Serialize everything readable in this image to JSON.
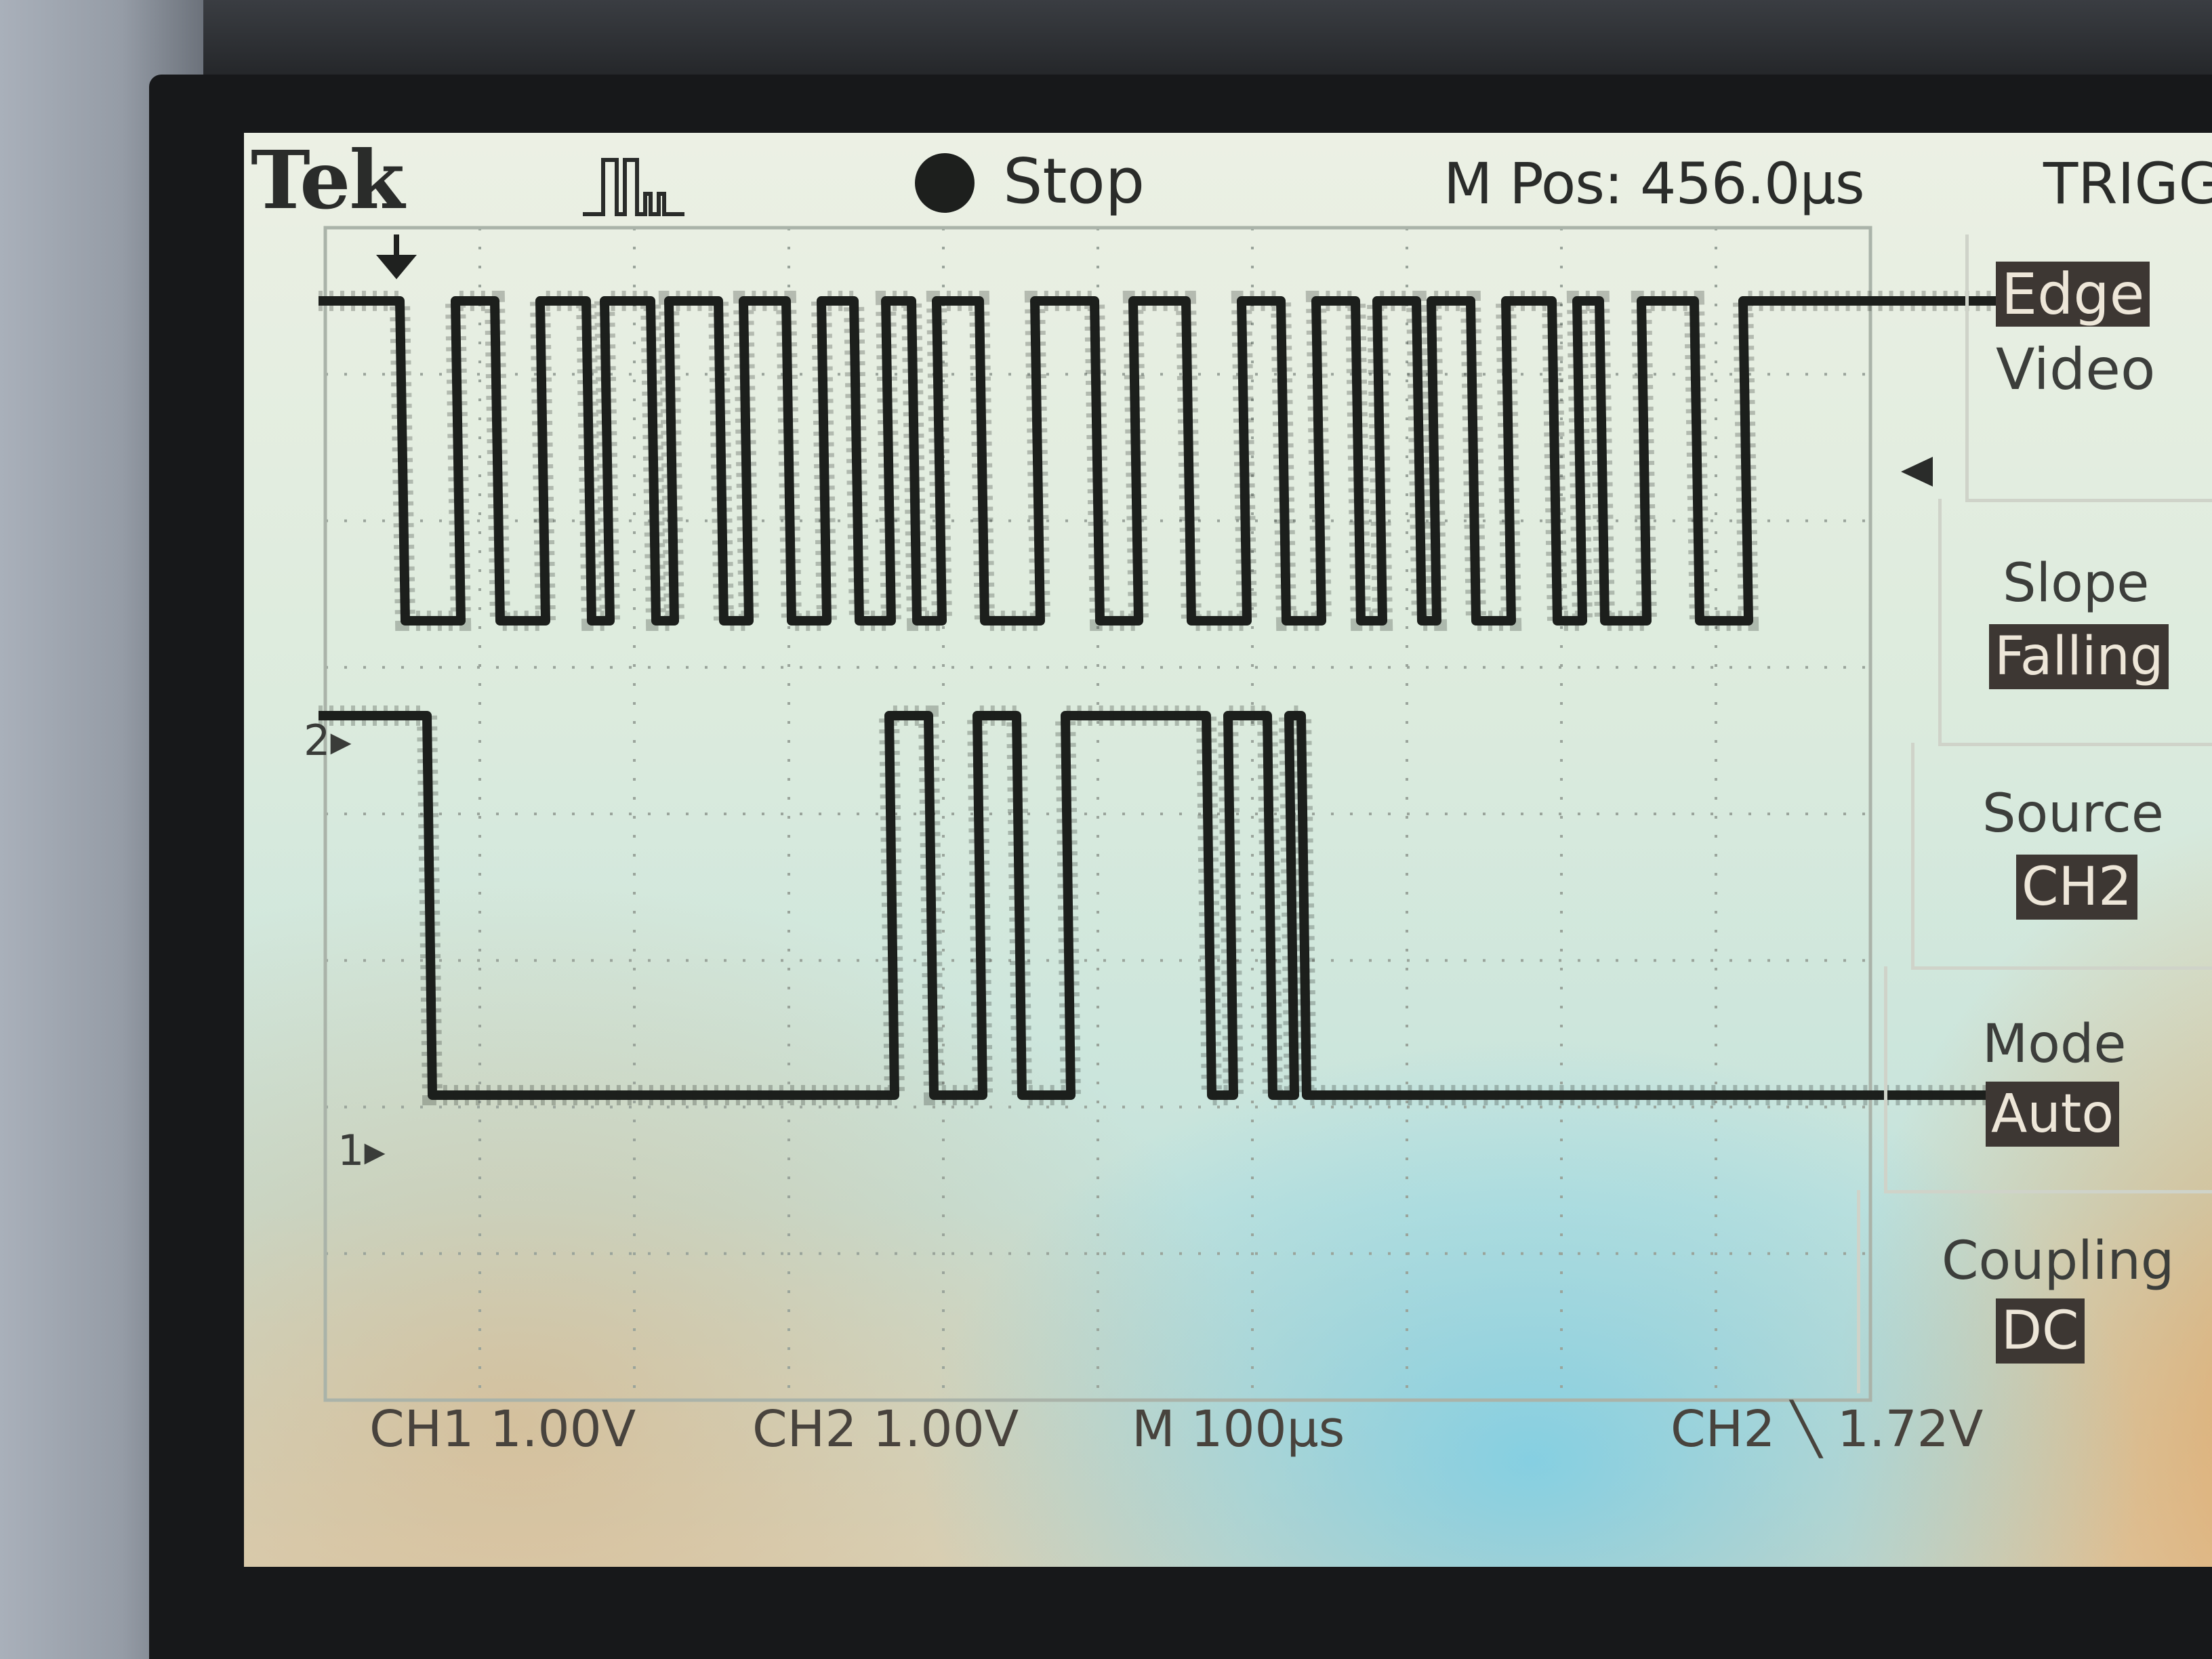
{
  "header": {
    "brand": "Tek",
    "acquisition_icon": "pulse-train-icon",
    "run_status": "Stop",
    "horizontal_position": "M Pos: 456.0µs",
    "menu_title": "TRIGG"
  },
  "trigger_menu": {
    "type": {
      "selected": "Edge",
      "other": "Video"
    },
    "slope": {
      "label": "Slope",
      "value": "Falling"
    },
    "source": {
      "label": "Source",
      "value": "CH2"
    },
    "mode": {
      "label": "Mode",
      "value": "Auto"
    },
    "coupling": {
      "label": "Coupling",
      "value": "DC"
    }
  },
  "channel_markers": {
    "ch2": "2",
    "ch1": "1"
  },
  "footer": {
    "ch1_scale": "CH1 1.00V",
    "ch2_scale": "CH2 1.00V",
    "timebase": "M 100µs",
    "trigger_readout": "CH2 ╲ 1.72V"
  },
  "colors": {
    "trace": "#1c1f1c",
    "screen": "#e3ecdf",
    "menu_highlight": "#3d3733"
  }
}
